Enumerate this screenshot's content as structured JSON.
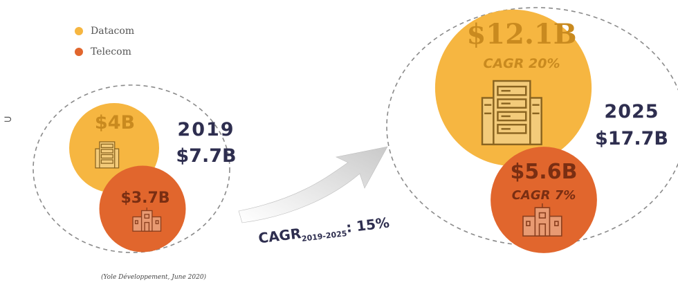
{
  "legend": [
    {
      "label": "Datacom",
      "color": "#F6B641"
    },
    {
      "label": "Telecom",
      "color": "#E1662D"
    }
  ],
  "source": "(Yole Développement, June 2020)",
  "edge_glyph": "⊃",
  "growth_label": {
    "prefix": "CAGR",
    "sub": "2019-2025",
    "suffix": ": 15%"
  },
  "colors": {
    "datacom": "#F6B641",
    "telecom": "#E1662D",
    "navy": "#2E2E4F",
    "dashed": "#8a8a8a"
  },
  "chart_data": {
    "type": "bubble",
    "series_names": [
      "Datacom",
      "Telecom"
    ],
    "groups": [
      {
        "year": "2019",
        "total": 7.7,
        "total_label": "$7.7B",
        "values": [
          {
            "series": "Datacom",
            "value": 4.0,
            "label": "$4B",
            "icon": "server-rack-icon"
          },
          {
            "series": "Telecom",
            "value": 3.7,
            "label": "$3.7B",
            "icon": "telecom-building-icon"
          }
        ]
      },
      {
        "year": "2025",
        "total": 17.7,
        "total_label": "$17.7B",
        "values": [
          {
            "series": "Datacom",
            "value": 12.1,
            "label": "$12.1B",
            "cagr_label": "CAGR 20%",
            "icon": "server-rack-icon"
          },
          {
            "series": "Telecom",
            "value": 5.6,
            "label": "$5.6B",
            "cagr_label": "CAGR 7%",
            "icon": "telecom-building-icon"
          }
        ]
      }
    ],
    "overall_cagr": {
      "period": "2019-2025",
      "value": 15
    }
  }
}
